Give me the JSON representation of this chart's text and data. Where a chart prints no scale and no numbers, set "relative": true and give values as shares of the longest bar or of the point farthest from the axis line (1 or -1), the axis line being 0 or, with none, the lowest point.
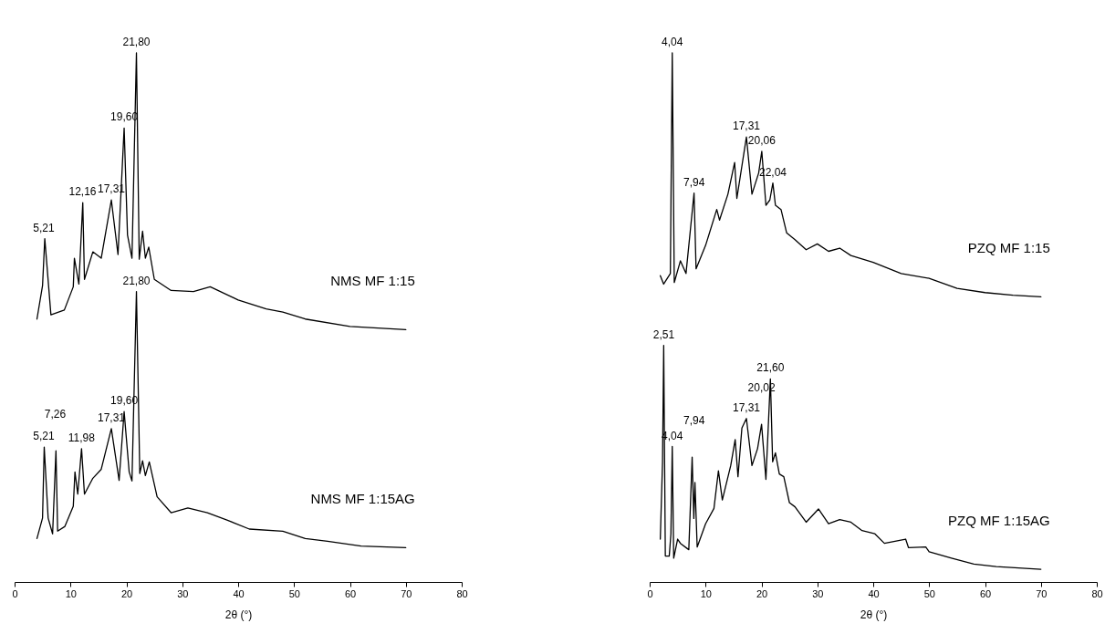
{
  "chart_data": [
    {
      "type": "line",
      "relative": true,
      "xlabel": "2θ (°)",
      "xlim": [
        0,
        80
      ],
      "xticks": [
        0,
        10,
        20,
        30,
        40,
        50,
        60,
        70,
        80
      ],
      "series": [
        {
          "name": "NMS MF 1:15",
          "color": "#000000",
          "x": [
            4,
            5,
            5.4,
            6.5,
            8.9,
            10.5,
            10.7,
            11.5,
            12.2,
            12.5,
            14,
            15.5,
            17.31,
            18.5,
            19.6,
            20.2,
            21,
            21.8,
            22.3,
            22.9,
            23.4,
            24,
            25,
            28,
            32,
            35,
            40,
            45,
            48,
            52,
            60,
            70
          ],
          "values": [
            0.497,
            0.56,
            0.649,
            0.505,
            0.514,
            0.558,
            0.612,
            0.563,
            0.717,
            0.572,
            0.624,
            0.612,
            0.722,
            0.619,
            0.858,
            0.656,
            0.612,
            1.0,
            0.61,
            0.663,
            0.612,
            0.633,
            0.572,
            0.551,
            0.549,
            0.558,
            0.533,
            0.516,
            0.51,
            0.497,
            0.483,
            0.477
          ]
        },
        {
          "name": "NMS MF 1:15AG",
          "color": "#000000",
          "x": [
            4,
            5,
            5.3,
            6,
            6.8,
            7.4,
            7.7,
            9,
            10.5,
            10.8,
            11.3,
            11.98,
            12.5,
            14,
            15.5,
            17.31,
            18.7,
            19.6,
            20.5,
            21,
            21.8,
            22.4,
            22.9,
            23.4,
            24.1,
            25.5,
            28,
            31,
            34.5,
            38,
            42,
            48,
            52,
            56,
            62,
            70
          ],
          "values": [
            0.082,
            0.121,
            0.255,
            0.121,
            0.091,
            0.248,
            0.096,
            0.105,
            0.143,
            0.208,
            0.166,
            0.252,
            0.166,
            0.196,
            0.213,
            0.29,
            0.192,
            0.322,
            0.208,
            0.191,
            0.549,
            0.205,
            0.229,
            0.201,
            0.227,
            0.161,
            0.131,
            0.14,
            0.131,
            0.117,
            0.1,
            0.096,
            0.082,
            0.077,
            0.068,
            0.065
          ]
        }
      ],
      "annotations": [
        {
          "text": "5,21",
          "x": 5.21,
          "y": 0.649
        },
        {
          "text": "12,16",
          "x": 12.16,
          "y": 0.717
        },
        {
          "text": "17,31",
          "x": 17.31,
          "y": 0.722
        },
        {
          "text": "19,60",
          "x": 19.6,
          "y": 0.858
        },
        {
          "text": "21,80",
          "x": 21.8,
          "y": 1.0
        },
        {
          "text": "5,21",
          "x": 5.21,
          "y": 0.255
        },
        {
          "text": "7,26",
          "x": 7.26,
          "y": 0.248
        },
        {
          "text": "11,98",
          "x": 11.98,
          "y": 0.252
        },
        {
          "text": "17,31",
          "x": 17.31,
          "y": 0.29
        },
        {
          "text": "19,60",
          "x": 19.6,
          "y": 0.322
        },
        {
          "text": "21,80",
          "x": 21.8,
          "y": 0.549
        }
      ]
    },
    {
      "type": "line",
      "relative": true,
      "xlabel": "2θ (°)",
      "xlim": [
        0,
        80
      ],
      "xticks": [
        0,
        10,
        20,
        30,
        40,
        50,
        60,
        70,
        80
      ],
      "series": [
        {
          "name": "PZQ  MF 1:15",
          "color": "#000000",
          "x": [
            1.9,
            2.5,
            3.7,
            4.04,
            4.4,
            5.5,
            6.5,
            7.94,
            8.3,
            10,
            12,
            12.5,
            14,
            15.2,
            15.6,
            17.31,
            18.3,
            19.5,
            20.06,
            20.8,
            21.5,
            22.04,
            22.5,
            23.5,
            24.5,
            26,
            28,
            30,
            32,
            34,
            36,
            40,
            45,
            50,
            55,
            60,
            65,
            70
          ],
          "values": [
            0.579,
            0.563,
            0.583,
            1.0,
            0.566,
            0.607,
            0.583,
            0.735,
            0.592,
            0.636,
            0.704,
            0.684,
            0.733,
            0.793,
            0.725,
            0.841,
            0.733,
            0.773,
            0.814,
            0.712,
            0.722,
            0.754,
            0.712,
            0.704,
            0.66,
            0.647,
            0.628,
            0.639,
            0.625,
            0.631,
            0.617,
            0.604,
            0.583,
            0.574,
            0.555,
            0.547,
            0.542,
            0.539
          ]
        },
        {
          "name": "PZQ MF 1:15AG",
          "color": "#000000",
          "x": [
            1.9,
            2.3,
            2.51,
            2.8,
            3.5,
            3.8,
            4.04,
            4.3,
            5,
            5.5,
            7,
            7.6,
            7.9,
            8.1,
            8.5,
            10,
            11.5,
            12.3,
            13,
            14.5,
            15.3,
            15.8,
            16.5,
            17.31,
            18.3,
            19.3,
            20.02,
            20.8,
            21.6,
            22,
            22.5,
            23.2,
            24,
            25,
            26,
            28,
            30.2,
            32,
            34,
            36,
            38,
            40.3,
            42,
            45.8,
            46.3,
            49.4,
            50,
            54,
            58,
            62,
            70
          ],
          "values": [
            0.081,
            0.227,
            0.447,
            0.049,
            0.049,
            0.091,
            0.256,
            0.045,
            0.081,
            0.073,
            0.061,
            0.236,
            0.12,
            0.188,
            0.066,
            0.11,
            0.139,
            0.21,
            0.155,
            0.22,
            0.269,
            0.199,
            0.291,
            0.309,
            0.22,
            0.252,
            0.298,
            0.194,
            0.384,
            0.227,
            0.244,
            0.204,
            0.199,
            0.15,
            0.142,
            0.113,
            0.138,
            0.11,
            0.118,
            0.113,
            0.097,
            0.091,
            0.073,
            0.081,
            0.065,
            0.066,
            0.057,
            0.045,
            0.034,
            0.029,
            0.024
          ]
        }
      ],
      "annotations": [
        {
          "text": "4,04",
          "x": 4.04,
          "y": 1.0
        },
        {
          "text": "7,94",
          "x": 7.94,
          "y": 0.735
        },
        {
          "text": "17,31",
          "x": 17.31,
          "y": 0.841
        },
        {
          "text": "20,06",
          "x": 20.06,
          "y": 0.814
        },
        {
          "text": "22,04",
          "x": 22.04,
          "y": 0.754
        },
        {
          "text": "2,51",
          "x": 2.51,
          "y": 0.447
        },
        {
          "text": "4,04",
          "x": 4.04,
          "y": 0.256
        },
        {
          "text": "7,94",
          "x": 7.94,
          "y": 0.236
        },
        {
          "text": "17,31",
          "x": 17.31,
          "y": 0.309
        },
        {
          "text": "20,02",
          "x": 20.02,
          "y": 0.298
        },
        {
          "text": "21,60",
          "x": 21.6,
          "y": 0.384
        }
      ]
    }
  ]
}
